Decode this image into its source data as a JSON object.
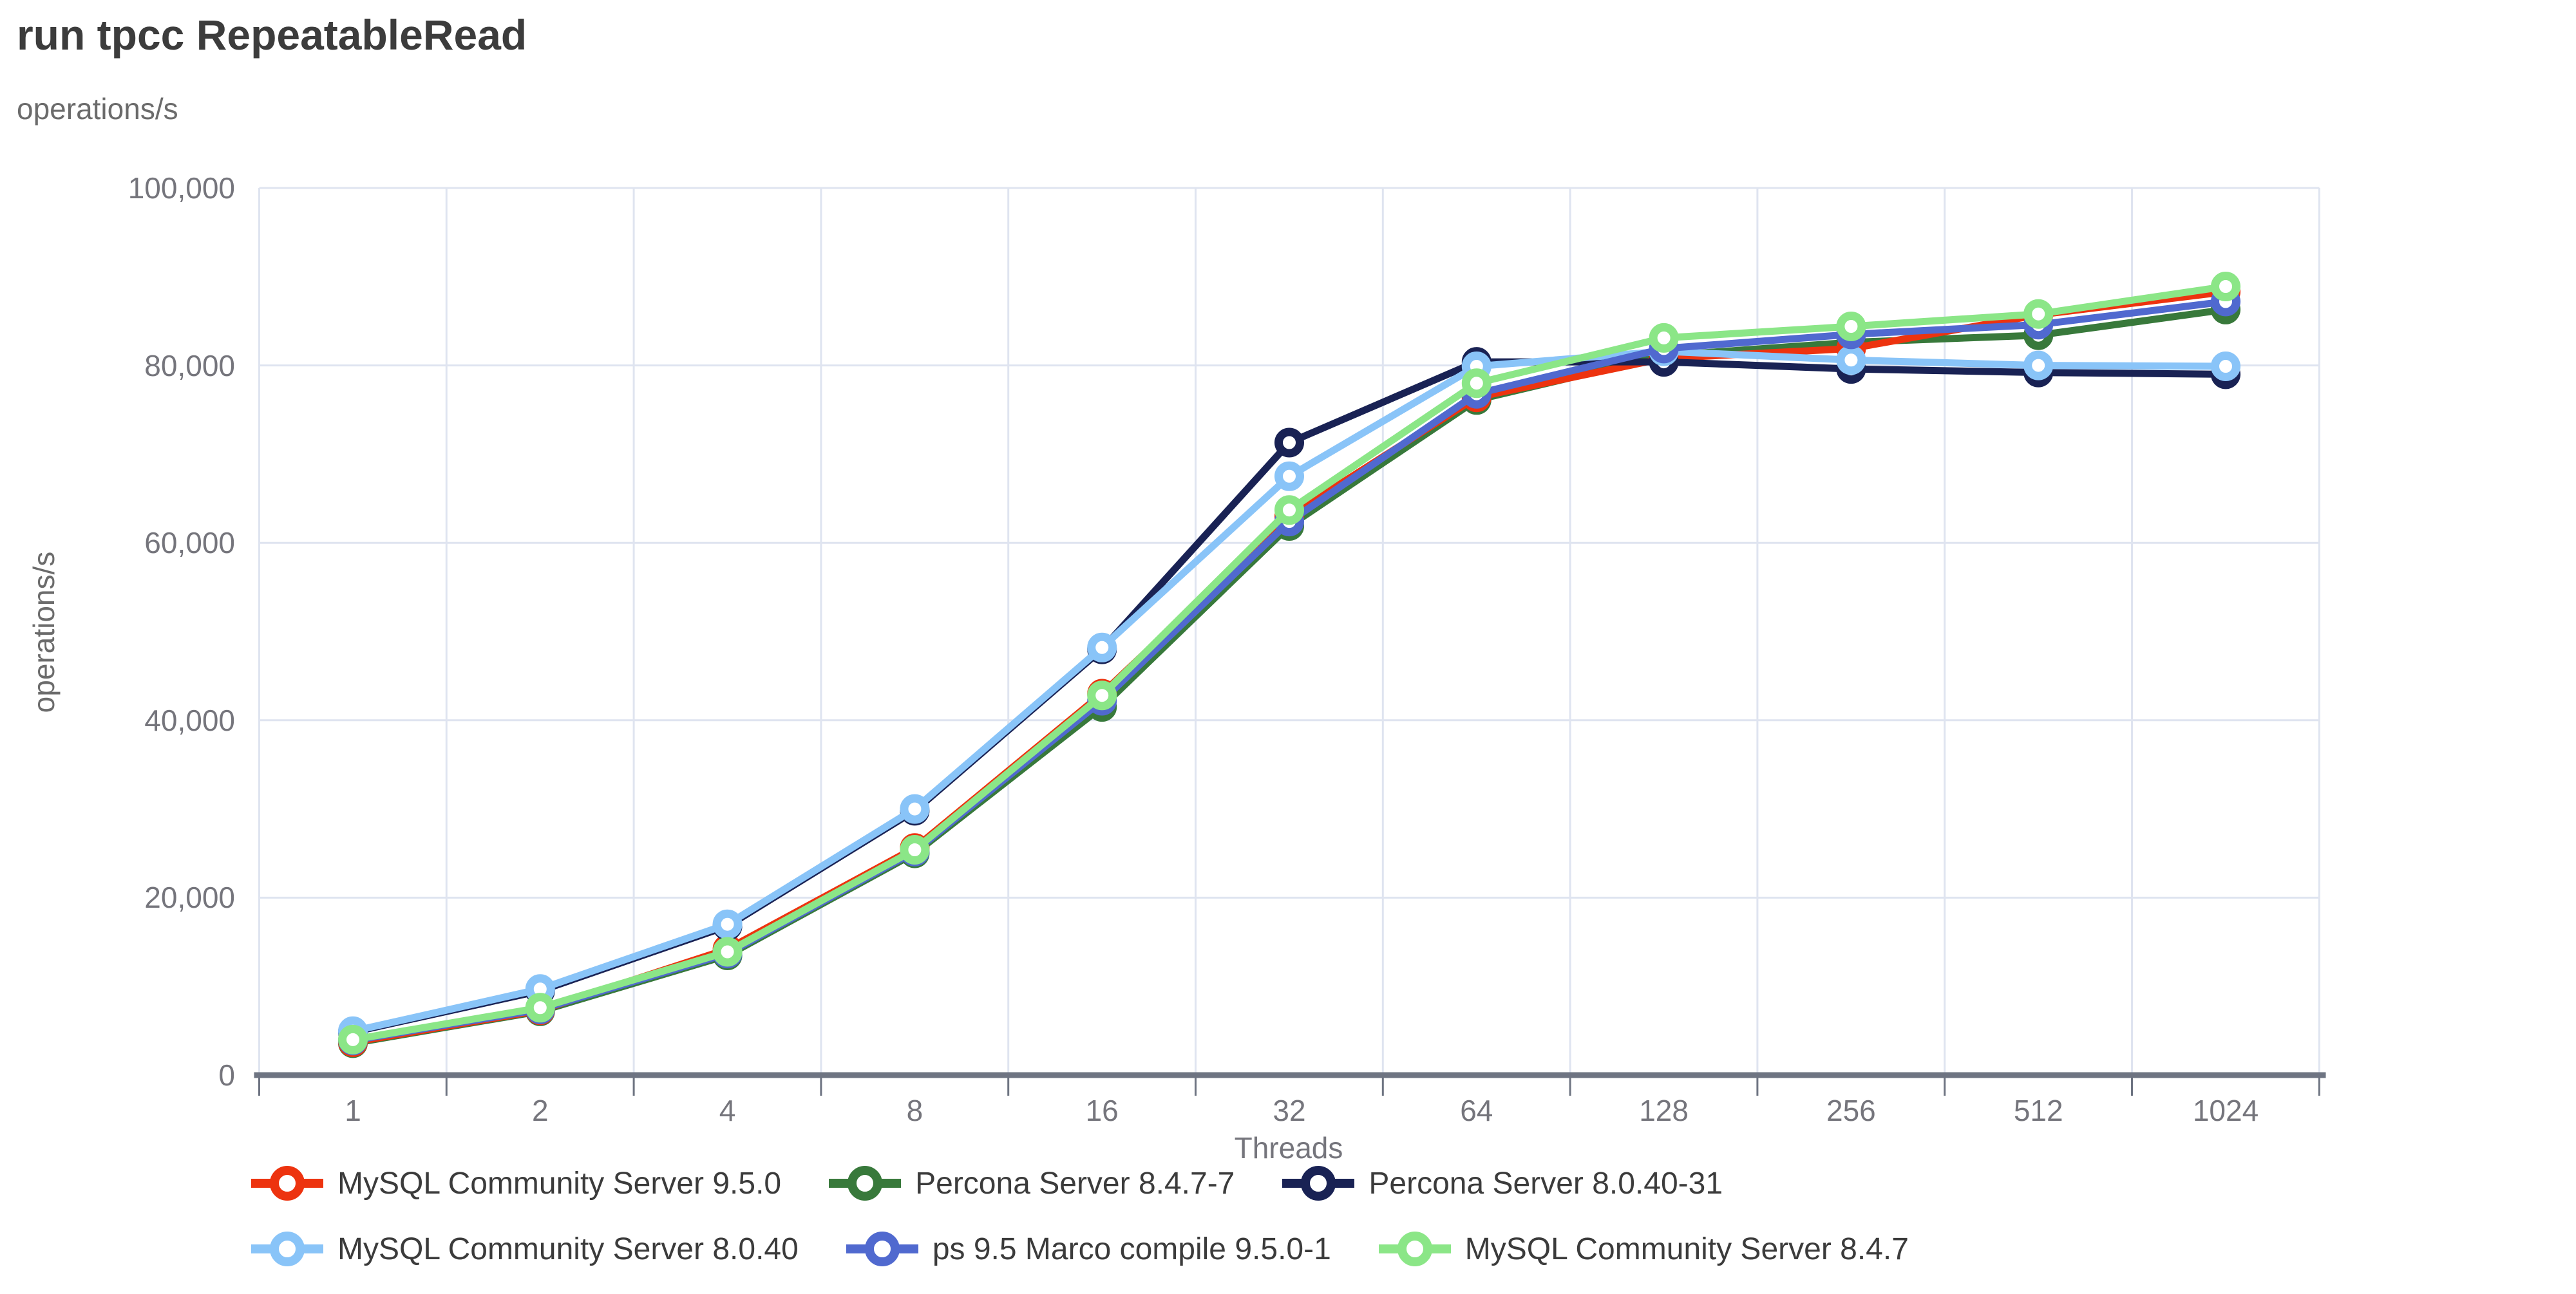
{
  "header": {
    "title": "run tpcc RepeatableRead"
  },
  "axes": {
    "y_unit_top": "operations/s",
    "y_title": "operations/s",
    "x_title": "Threads",
    "y_tick_labels": [
      "0",
      "20,000",
      "40,000",
      "60,000",
      "80,000",
      "100,000"
    ],
    "x_tick_labels": [
      "1",
      "2",
      "4",
      "8",
      "16",
      "32",
      "64",
      "128",
      "256",
      "512",
      "1024"
    ]
  },
  "colors": {
    "grid": "#dfe4f0",
    "axis": "#6e7482",
    "background": "#ffffff",
    "title_text": "#3c3c3c",
    "axis_text": "#75757c"
  },
  "chart_data": {
    "type": "line",
    "title": "run tpcc RepeatableRead",
    "xlabel": "Threads",
    "ylabel": "operations/s",
    "x_categories": [
      "1",
      "2",
      "4",
      "8",
      "16",
      "32",
      "64",
      "128",
      "256",
      "512",
      "1024"
    ],
    "x_scale": "categorical-log2-threads",
    "ylim": [
      0,
      100000
    ],
    "y_tick_step": 20000,
    "grid": true,
    "legend_position": "bottom",
    "marker": "open-circle",
    "series": [
      {
        "name": "MySQL Community Server 9.5.0",
        "color": "#ed330f",
        "values": [
          3700,
          7300,
          14200,
          25600,
          43000,
          63000,
          76400,
          80800,
          81900,
          85700,
          88300
        ]
      },
      {
        "name": "Percona Server 8.4.7-7",
        "color": "#38793b",
        "values": [
          3600,
          7200,
          13500,
          25000,
          41500,
          61900,
          76100,
          81100,
          82600,
          83400,
          86300
        ]
      },
      {
        "name": "Percona Server 8.0.40-31",
        "color": "#192254",
        "values": [
          4850,
          9500,
          16800,
          29800,
          48000,
          71300,
          80400,
          80400,
          79600,
          79200,
          79000
        ]
      },
      {
        "name": "MySQL Community Server 8.0.40",
        "color": "#89c4f8",
        "values": [
          4950,
          9700,
          17000,
          30000,
          48200,
          67500,
          79900,
          81600,
          80600,
          80000,
          79900
        ]
      },
      {
        "name": "ps 9.5 Marco compile 9.5.0-1",
        "color": "#5069cf",
        "values": [
          3900,
          7400,
          13700,
          25200,
          42200,
          62400,
          76800,
          81900,
          83500,
          84600,
          87200
        ]
      },
      {
        "name": "MySQL Community Server 8.4.7",
        "color": "#8be687",
        "values": [
          4000,
          7600,
          13900,
          25400,
          42800,
          63700,
          78000,
          83100,
          84400,
          85800,
          88900
        ]
      }
    ],
    "draw_order": [
      1,
      0,
      2,
      3,
      4,
      5
    ],
    "legend_rows": [
      [
        0,
        1,
        2
      ],
      [
        3,
        4,
        5
      ]
    ]
  }
}
